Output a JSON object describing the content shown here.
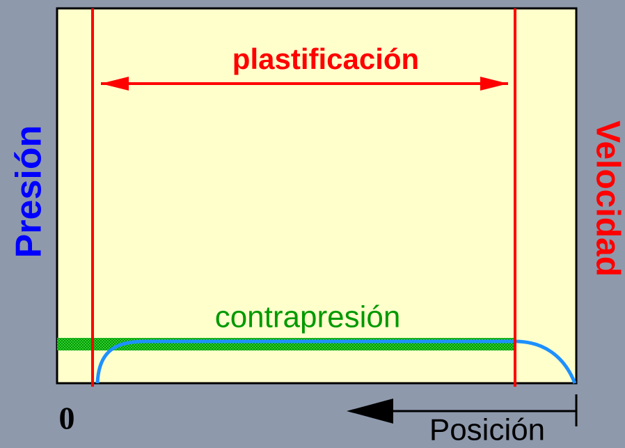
{
  "labels": {
    "plastification": "plastificación",
    "backpressure": "contrapresión",
    "pressure": "Presión",
    "speed": "Velocidad",
    "origin": "0",
    "position": "Posición"
  }
}
